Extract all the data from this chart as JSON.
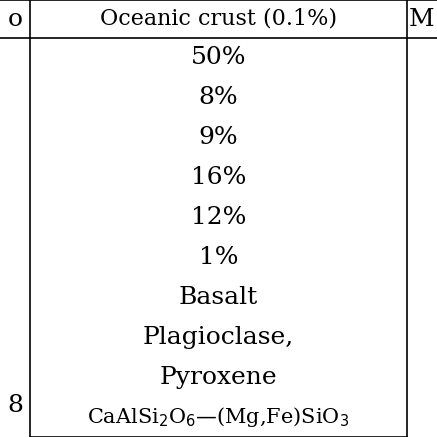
{
  "header": "Oceanic crust (0.1%)",
  "percentages": [
    "50%",
    "8%",
    "9%",
    "16%",
    "12%",
    "1%"
  ],
  "rock_type": "Basalt",
  "mineral_line1": "Plagioclase,",
  "mineral_line2": "Pyroxene",
  "formula_text": "CaAlSi$_2$O$_6$—(Mg,Fe)SiO$_3$",
  "left_partial": "o",
  "right_partial": "M",
  "background_color": "#ffffff",
  "text_color": "#000000",
  "line_color": "#000000",
  "header_fontsize": 16,
  "body_fontsize": 18,
  "formula_fontsize": 15,
  "small_col_fontsize": 18
}
